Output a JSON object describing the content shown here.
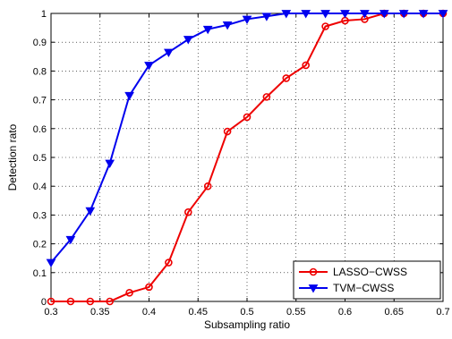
{
  "chart_data": {
    "type": "line",
    "title": "",
    "xlabel": "Subsampling ratio",
    "ylabel": "Detection rato",
    "xlim": [
      0.3,
      0.7
    ],
    "ylim": [
      0,
      1
    ],
    "xticks": [
      "0.3",
      "0.35",
      "0.4",
      "0.45",
      "0.5",
      "0.55",
      "0.6",
      "0.65",
      "0.7"
    ],
    "yticks": [
      "0",
      "0.1",
      "0.2",
      "0.3",
      "0.4",
      "0.5",
      "0.6",
      "0.7",
      "0.8",
      "0.9",
      "1"
    ],
    "grid": true,
    "legend_position": "bottom-right",
    "x": [
      0.3,
      0.32,
      0.34,
      0.36,
      0.38,
      0.4,
      0.42,
      0.44,
      0.46,
      0.48,
      0.5,
      0.52,
      0.54,
      0.56,
      0.58,
      0.6,
      0.62,
      0.64,
      0.66,
      0.68,
      0.7
    ],
    "series": [
      {
        "name": "LASSO−CWSS",
        "color": "#ee0000",
        "marker": "circle",
        "values": [
          0.0,
          0.0,
          0.0,
          0.0,
          0.03,
          0.05,
          0.135,
          0.31,
          0.4,
          0.59,
          0.64,
          0.71,
          0.775,
          0.82,
          0.955,
          0.975,
          0.98,
          1.0,
          1.0,
          1.0,
          1.0
        ]
      },
      {
        "name": "TVM−CWSS",
        "color": "#0000ee",
        "marker": "triangle-down",
        "values": [
          0.135,
          0.215,
          0.315,
          0.48,
          0.715,
          0.82,
          0.865,
          0.91,
          0.945,
          0.96,
          0.98,
          0.99,
          1.0,
          1.0,
          1.0,
          1.0,
          1.0,
          1.0,
          1.0,
          1.0,
          1.0
        ]
      }
    ]
  }
}
